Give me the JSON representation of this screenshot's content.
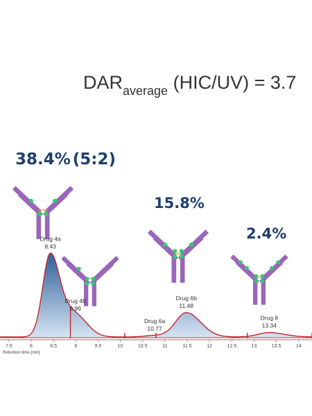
{
  "title": {
    "main": "DAR",
    "sub": "average",
    "rest": " (HIC/UV) = 3.7"
  },
  "colors": {
    "peak_fill": "#2f5f99",
    "peak_fill_light": "#d5e3f2",
    "trace": "#c0262c",
    "antibody": "#9966b8",
    "drug": "#2ecc71",
    "linker": "#e8a040",
    "percent_text": "#1f3f6e"
  },
  "chart_data": {
    "type": "area",
    "title": "",
    "xlabel": "Retention time [min]",
    "ylabel": "",
    "xlim": [
      7.3,
      14.3
    ],
    "x_ticks": [
      "7.5",
      "8",
      "8.5",
      "9",
      "9.5",
      "10",
      "10.5",
      "11",
      "11.5",
      "12",
      "12.5",
      "13",
      "13.5",
      "14"
    ],
    "peaks": [
      {
        "label": "Drug 4a",
        "rt": "8.43",
        "center": 8.43,
        "height": 0.86,
        "width": 0.17
      },
      {
        "label": "Drug 4b",
        "rt": "8.99",
        "center": 8.99,
        "height": 0.22,
        "width": 0.2
      },
      {
        "label": "Drug 6a",
        "rt": "10.77",
        "center": 10.77,
        "height": 0.015,
        "width": 0.22
      },
      {
        "label": "Drug 6b",
        "rt": "11.48",
        "center": 11.48,
        "height": 0.25,
        "width": 0.24
      },
      {
        "label": "Drug 8",
        "rt": "13.34",
        "center": 13.34,
        "height": 0.045,
        "width": 0.25
      }
    ],
    "integration_markers": [
      8.88,
      10.1,
      10.8,
      12.85,
      14.3
    ],
    "percentages": [
      {
        "value": "38.4%",
        "ratio": "(5:2)"
      },
      {
        "value": "15.8%"
      },
      {
        "value": "2.4%"
      }
    ]
  }
}
